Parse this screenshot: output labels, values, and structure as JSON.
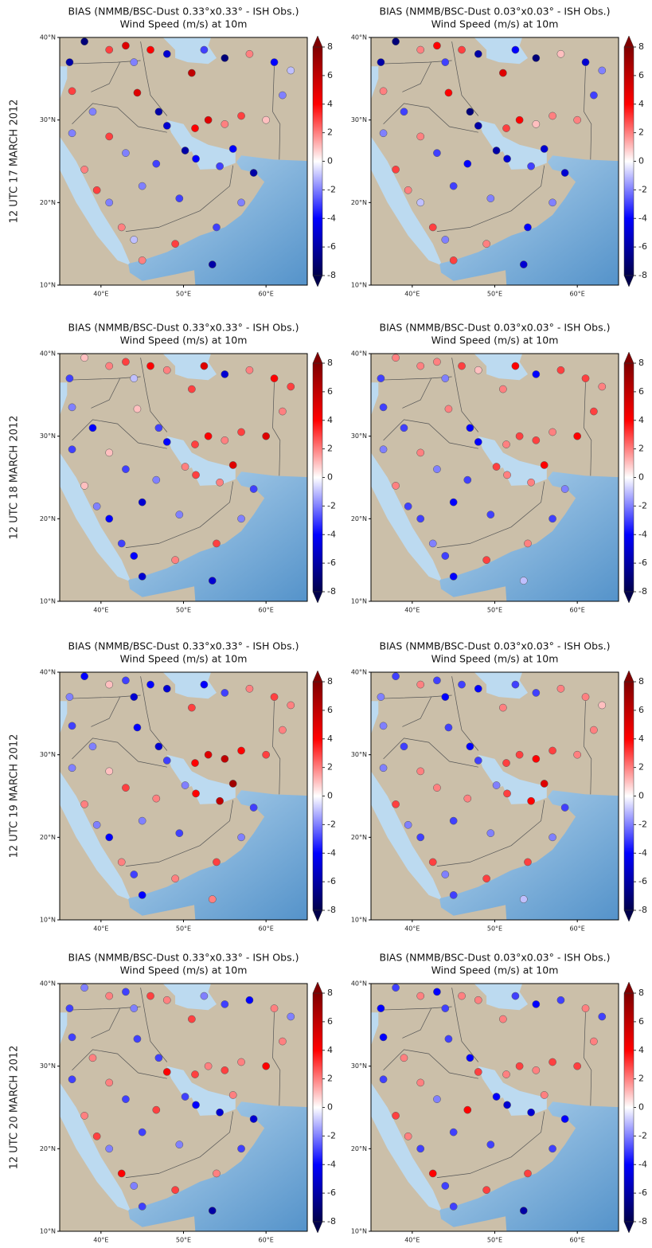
{
  "chart_data": {
    "type": "map",
    "xlim": [
      35,
      65
    ],
    "ylim": [
      10,
      40
    ],
    "xticks": [
      {
        "value": 40,
        "label": "40°E"
      },
      {
        "value": 50,
        "label": "50°E"
      },
      {
        "value": 60,
        "label": "60°E"
      }
    ],
    "yticks": [
      {
        "value": 10,
        "label": "10°N"
      },
      {
        "value": 20,
        "label": "20°N"
      },
      {
        "value": 30,
        "label": "30°N"
      },
      {
        "value": 40,
        "label": "40°N"
      }
    ],
    "colorbar": {
      "lim": [
        -8,
        8
      ],
      "ticks": [
        8,
        6,
        4,
        2,
        0,
        -2,
        -4,
        -6,
        -8
      ],
      "colors": [
        "#00004c",
        "#0000ff",
        "#ffffff",
        "#ff0000",
        "#800000"
      ]
    },
    "stations": [
      [
        36.2,
        37
      ],
      [
        38,
        39.5
      ],
      [
        41,
        38.5
      ],
      [
        43,
        39
      ],
      [
        44,
        37
      ],
      [
        46,
        38.5
      ],
      [
        48,
        38
      ],
      [
        51,
        35.7
      ],
      [
        52.5,
        38.5
      ],
      [
        55,
        37.5
      ],
      [
        58,
        38
      ],
      [
        61,
        37
      ],
      [
        63,
        36
      ],
      [
        36.5,
        33.5
      ],
      [
        39,
        31
      ],
      [
        44.4,
        33.3
      ],
      [
        47,
        31
      ],
      [
        48,
        29.3
      ],
      [
        50.2,
        26.3
      ],
      [
        51.5,
        25.3
      ],
      [
        54.4,
        24.4
      ],
      [
        56,
        26.5
      ],
      [
        58.5,
        23.6
      ],
      [
        57,
        20
      ],
      [
        54,
        17
      ],
      [
        49,
        15
      ],
      [
        45,
        13
      ],
      [
        44,
        15.5
      ],
      [
        42.5,
        17
      ],
      [
        41,
        20
      ],
      [
        39.5,
        21.5
      ],
      [
        38,
        24
      ],
      [
        43,
        26
      ],
      [
        46.7,
        24.7
      ],
      [
        41,
        28
      ],
      [
        36.5,
        28.4
      ],
      [
        51.4,
        29
      ],
      [
        53,
        30
      ],
      [
        55,
        29.5
      ],
      [
        57,
        30.5
      ],
      [
        60,
        30
      ],
      [
        62,
        33
      ],
      [
        49.5,
        20.5
      ],
      [
        45,
        22
      ],
      [
        53.5,
        12.5
      ]
    ],
    "rows": [
      {
        "label": "12 UTC 17 MARCH 2012",
        "panels": [
          {
            "title": "BIAS (NMMB/BSC-Dust 0.33°x0.33° - ISH Obs.)",
            "subtitle": "Wind Speed (m/s) at 10m",
            "values": [
              -6,
              -7,
              3,
              5,
              -2,
              4,
              -5,
              6,
              -3,
              -7,
              2,
              -4,
              -1,
              3,
              -2,
              5,
              -6,
              -5,
              -6,
              -4,
              -3,
              -4,
              -6,
              -2,
              -3,
              3,
              2,
              -1,
              2,
              -2,
              3,
              2,
              -2,
              -3,
              3,
              -2,
              4,
              5,
              2,
              3,
              1,
              -2,
              -3,
              -2,
              -6
            ]
          },
          {
            "title": "BIAS (NMMB/BSC-Dust 0.03°x0.03° - ISH Obs.)",
            "subtitle": "Wind Speed (m/s) at 10m",
            "values": [
              -6,
              -7,
              2,
              4,
              -3,
              3,
              -6,
              5,
              -4,
              -7,
              1,
              -5,
              -2,
              2,
              -3,
              4,
              -7,
              -6,
              -6,
              -5,
              -3,
              -5,
              -5,
              -2,
              -4,
              2,
              3,
              -2,
              3,
              -1,
              2,
              3,
              -3,
              -4,
              2,
              -2,
              3,
              4,
              1,
              2,
              2,
              -3,
              -2,
              -3,
              -5
            ]
          }
        ]
      },
      {
        "label": "12 UTC 18 MARCH 2012",
        "panels": [
          {
            "title": "BIAS (NMMB/BSC-Dust 0.33°x0.33° - ISH Obs.)",
            "subtitle": "Wind Speed (m/s) at 10m",
            "values": [
              -3,
              1,
              2,
              3,
              -1,
              4,
              2,
              3,
              5,
              -5,
              2,
              4,
              3,
              -2,
              -4,
              1,
              -3,
              -4,
              2,
              3,
              2,
              5,
              -3,
              -2,
              3,
              2,
              -5,
              -4,
              -3,
              -4,
              -2,
              1,
              -3,
              -2,
              1,
              -3,
              3,
              4,
              2,
              3,
              5,
              2,
              -2,
              -5,
              -5
            ]
          },
          {
            "title": "BIAS (NMMB/BSC-Dust 0.03°x0.03° - ISH Obs.)",
            "subtitle": "Wind Speed (m/s) at 10m",
            "values": [
              -3,
              2,
              2,
              2,
              -2,
              3,
              1,
              2,
              4,
              -4,
              3,
              3,
              2,
              -3,
              -3,
              2,
              -4,
              -4,
              3,
              2,
              2,
              4,
              -2,
              -3,
              2,
              3,
              -4,
              -3,
              -2,
              -3,
              -3,
              2,
              -2,
              -3,
              2,
              -2,
              2,
              3,
              3,
              2,
              4,
              3,
              -3,
              -4,
              -1
            ]
          }
        ]
      },
      {
        "label": "12 UTC 19 MARCH 2012",
        "panels": [
          {
            "title": "BIAS (NMMB/BSC-Dust 0.33°x0.33° - ISH Obs.)",
            "subtitle": "Wind Speed (m/s) at 10m",
            "values": [
              -2,
              -4,
              1,
              -3,
              -5,
              -4,
              -5,
              3,
              -4,
              -3,
              2,
              3,
              2,
              -3,
              -2,
              -4,
              -5,
              -3,
              -2,
              4,
              6,
              7,
              -3,
              -2,
              3,
              2,
              -4,
              -3,
              2,
              -4,
              -2,
              2,
              3,
              2,
              1,
              -2,
              4,
              5,
              6,
              4,
              3,
              2,
              -3,
              -2,
              2
            ]
          },
          {
            "title": "BIAS (NMMB/BSC-Dust 0.03°x0.03° - ISH Obs.)",
            "subtitle": "Wind Speed (m/s) at 10m",
            "values": [
              -2,
              -3,
              2,
              -3,
              -4,
              -3,
              -4,
              2,
              -3,
              -3,
              2,
              2,
              1,
              -2,
              -3,
              -3,
              -4,
              -3,
              -2,
              3,
              4,
              5,
              -3,
              -2,
              3,
              3,
              -3,
              -2,
              3,
              -3,
              -2,
              3,
              2,
              2,
              2,
              -2,
              3,
              3,
              4,
              3,
              2,
              2,
              -2,
              -3,
              -1
            ]
          }
        ]
      },
      {
        "label": "12 UTC 20 MARCH 2012",
        "panels": [
          {
            "title": "BIAS (NMMB/BSC-Dust 0.33°x0.33° - ISH Obs.)",
            "subtitle": "Wind Speed (m/s) at 10m",
            "values": [
              -3,
              -2,
              2,
              -3,
              -2,
              3,
              2,
              3,
              -2,
              -3,
              -4,
              2,
              -2,
              -3,
              2,
              -3,
              -3,
              4,
              -3,
              -4,
              -5,
              2,
              -5,
              -3,
              2,
              3,
              -3,
              -2,
              4,
              -2,
              3,
              2,
              -3,
              3,
              2,
              -3,
              3,
              2,
              3,
              2,
              4,
              2,
              -2,
              -3,
              -6
            ]
          },
          {
            "title": "BIAS (NMMB/BSC-Dust 0.03°x0.03° - ISH Obs.)",
            "subtitle": "Wind Speed (m/s) at 10m",
            "values": [
              -4,
              -3,
              2,
              -4,
              -3,
              2,
              2,
              2,
              -3,
              -4,
              -3,
              2,
              -3,
              -4,
              2,
              -3,
              -4,
              3,
              -4,
              -5,
              -5,
              2,
              -4,
              -3,
              3,
              3,
              -3,
              -3,
              4,
              -3,
              2,
              3,
              -2,
              4,
              2,
              -3,
              2,
              3,
              2,
              3,
              3,
              2,
              -3,
              -3,
              -6
            ]
          }
        ]
      }
    ]
  }
}
